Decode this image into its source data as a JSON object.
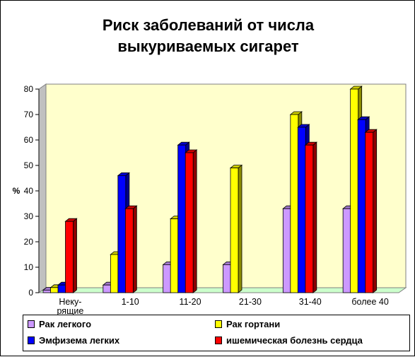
{
  "chart_data": {
    "type": "bar",
    "title_lines": [
      "Риск заболеваний от числа",
      "выкуриваемых сигарет"
    ],
    "ylabel": "%",
    "ylim": [
      0,
      80
    ],
    "yticks": [
      "0",
      "10",
      "20",
      "30",
      "40",
      "50",
      "60",
      "70",
      "80"
    ],
    "categories": [
      "Неку-\nрящие",
      "1-10",
      "11-20",
      "21-30",
      "31-40",
      "более 40"
    ],
    "series": [
      {
        "name": "Рак легкого",
        "color": "#CC99FF",
        "values": [
          1,
          3,
          11,
          11,
          33,
          33
        ]
      },
      {
        "name": "Рак гортани",
        "color": "#FFFF00",
        "values": [
          2,
          15,
          29,
          49,
          70,
          80
        ]
      },
      {
        "name": "Эмфизема легких",
        "color": "#0000FF",
        "values": [
          3,
          46,
          58,
          0,
          65,
          68
        ]
      },
      {
        "name": "ишемическая болезнь сердца",
        "color": "#FF0000",
        "values": [
          28,
          33,
          55,
          0,
          58,
          63
        ]
      }
    ],
    "grid": false,
    "legend_position": "bottom",
    "wall_color": "#FFFFCC",
    "floor_color": "#CCFFCC"
  }
}
